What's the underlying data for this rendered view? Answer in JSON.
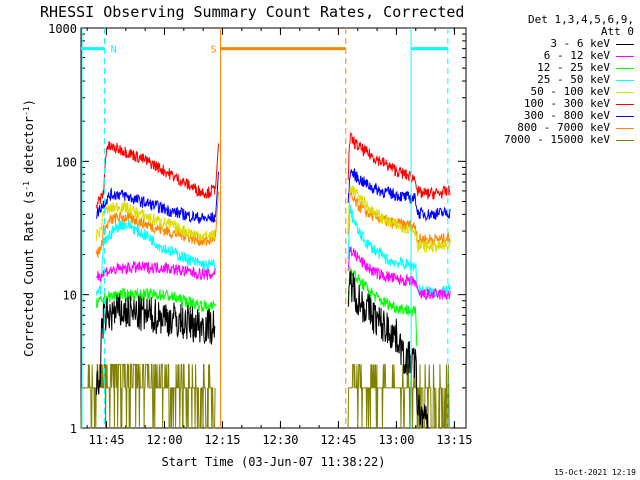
{
  "chart_data": {
    "type": "line",
    "title": "RHESSI Observing Summary Count Rates, Corrected",
    "xlabel": "Start Time (03-Jun-07 11:38:22)",
    "ylabel_prefix": "Corrected Count Rate (s",
    "ylabel_sup1": "-1",
    "ylabel_mid": " detector",
    "ylabel_sup2": "-1",
    "ylabel_suffix": ")",
    "y_scale": "log",
    "ylim": [
      1,
      1000
    ],
    "xlim_min": [
      698.4,
      798.0
    ],
    "x_ticks": [
      {
        "min": 705,
        "label": "11:45"
      },
      {
        "min": 720,
        "label": "12:00"
      },
      {
        "min": 735,
        "label": "12:15"
      },
      {
        "min": 750,
        "label": "12:30"
      },
      {
        "min": 765,
        "label": "12:45"
      },
      {
        "min": 780,
        "label": "13:00"
      },
      {
        "min": 795,
        "label": "13:15"
      }
    ],
    "y_ticks": [
      {
        "value": 1,
        "label": "1"
      },
      {
        "value": 10,
        "label": "10"
      },
      {
        "value": 100,
        "label": "100"
      },
      {
        "value": 1000,
        "label": "1000"
      }
    ],
    "legend_header": [
      "Det 1,3,4,5,6,9,",
      "Att 0"
    ],
    "series": [
      {
        "name": "3 - 6 keV",
        "color": "#000000",
        "seg1": [
          [
            702.4,
            2
          ],
          [
            703.2,
            2
          ],
          [
            703.8,
            6
          ],
          [
            705,
            7
          ],
          [
            706,
            7
          ],
          [
            708,
            7.5
          ],
          [
            712,
            7.2
          ],
          [
            716,
            7
          ],
          [
            720,
            6.8
          ],
          [
            724,
            6.3
          ],
          [
            728,
            6
          ],
          [
            732,
            5.8
          ],
          [
            733.2,
            6
          ]
        ],
        "seg2": [
          [
            767.5,
            6
          ],
          [
            768,
            13
          ],
          [
            769,
            11
          ],
          [
            770,
            9.5
          ],
          [
            772,
            8
          ],
          [
            774,
            7
          ],
          [
            776,
            6
          ],
          [
            778,
            5.5
          ],
          [
            780,
            4.8
          ],
          [
            781,
            4.5
          ],
          [
            781.5,
            3.4
          ],
          [
            784,
            3.2
          ],
          [
            785,
            3
          ],
          [
            785.5,
            1.4
          ],
          [
            787,
            1.2
          ],
          [
            788.2,
            1
          ]
        ]
      },
      {
        "name": "6 - 12 keV",
        "color": "#ff00ff",
        "seg1": [
          [
            702.4,
            14
          ],
          [
            703.8,
            14
          ],
          [
            705,
            15
          ],
          [
            708,
            15.5
          ],
          [
            712,
            16
          ],
          [
            716,
            16
          ],
          [
            720,
            16
          ],
          [
            724,
            15.2
          ],
          [
            728,
            14.5
          ],
          [
            732,
            14
          ],
          [
            733.2,
            15
          ]
        ],
        "seg2": [
          [
            767.5,
            16
          ],
          [
            768,
            22
          ],
          [
            770,
            19
          ],
          [
            772,
            16.5
          ],
          [
            774,
            15
          ],
          [
            776,
            14
          ],
          [
            778,
            13.6
          ],
          [
            780,
            13
          ],
          [
            782,
            12.8
          ],
          [
            784,
            12.5
          ],
          [
            785,
            12.5
          ],
          [
            785.5,
            10
          ],
          [
            788,
            10
          ],
          [
            792,
            10
          ],
          [
            794,
            10
          ]
        ]
      },
      {
        "name": "12 - 25 keV",
        "color": "#00ff00",
        "seg1": [
          [
            702.4,
            8.5
          ],
          [
            703.8,
            9
          ],
          [
            705,
            9.5
          ],
          [
            708,
            10
          ],
          [
            712,
            10
          ],
          [
            716,
            10
          ],
          [
            720,
            10
          ],
          [
            724,
            9.2
          ],
          [
            728,
            8.5
          ],
          [
            732,
            8
          ],
          [
            733.2,
            8.5
          ]
        ],
        "seg2": [
          [
            767.5,
            9
          ],
          [
            768,
            16
          ],
          [
            770,
            13
          ],
          [
            772,
            11.5
          ],
          [
            774,
            10
          ],
          [
            776,
            9
          ],
          [
            778,
            8.5
          ],
          [
            780,
            8
          ],
          [
            782,
            7.8
          ],
          [
            784,
            7.5
          ],
          [
            785,
            7.3
          ],
          [
            785.3,
            4
          ]
        ]
      },
      {
        "name": "25 - 50 keV",
        "color": "#00ffff",
        "seg1": [
          [
            702.4,
            10
          ],
          [
            703.5,
            10.5
          ],
          [
            704.2,
            24
          ],
          [
            705,
            26
          ],
          [
            707,
            31
          ],
          [
            709,
            34
          ],
          [
            711,
            33
          ],
          [
            713,
            30
          ],
          [
            716,
            27
          ],
          [
            719,
            23
          ],
          [
            722,
            21
          ],
          [
            725,
            19
          ],
          [
            728,
            17.5
          ],
          [
            731,
            16.5
          ],
          [
            733.2,
            17
          ]
        ],
        "seg2": [
          [
            767.5,
            18
          ],
          [
            768,
            45
          ],
          [
            769,
            36
          ],
          [
            770,
            30
          ],
          [
            772,
            25
          ],
          [
            774,
            22
          ],
          [
            776,
            20
          ],
          [
            778,
            18
          ],
          [
            780,
            17.5
          ],
          [
            782,
            17
          ],
          [
            784,
            16.5
          ],
          [
            785,
            16.5
          ],
          [
            785.5,
            11
          ],
          [
            788,
            10.5
          ],
          [
            792,
            10.5
          ],
          [
            794,
            11
          ]
        ]
      },
      {
        "name": "50 - 100 keV",
        "color": "#dddd00",
        "seg1": [
          [
            702.4,
            28
          ],
          [
            703.5,
            30
          ],
          [
            704.2,
            42
          ],
          [
            706,
            44
          ],
          [
            708,
            46
          ],
          [
            710,
            45
          ],
          [
            712,
            42
          ],
          [
            715,
            39
          ],
          [
            718,
            36
          ],
          [
            721,
            34
          ],
          [
            724,
            31
          ],
          [
            727,
            29
          ],
          [
            730,
            27.5
          ],
          [
            733.2,
            28
          ]
        ],
        "seg2": [
          [
            767.5,
            30
          ],
          [
            768,
            65
          ],
          [
            770,
            55
          ],
          [
            772,
            48
          ],
          [
            774,
            42
          ],
          [
            776,
            38
          ],
          [
            778,
            35
          ],
          [
            780,
            33
          ],
          [
            782,
            32
          ],
          [
            784,
            31
          ],
          [
            785,
            30
          ],
          [
            785.5,
            23
          ],
          [
            788,
            23
          ],
          [
            792,
            23
          ],
          [
            794,
            23
          ]
        ]
      },
      {
        "name": "100 - 300 keV",
        "color": "#ff0000",
        "seg1": [
          [
            702.4,
            48
          ],
          [
            703.5,
            52
          ],
          [
            704.2,
            58
          ],
          [
            705,
            130
          ],
          [
            707,
            125
          ],
          [
            709,
            122
          ],
          [
            711,
            115
          ],
          [
            714,
            105
          ],
          [
            717,
            95
          ],
          [
            720,
            85
          ],
          [
            723,
            75
          ],
          [
            726,
            67
          ],
          [
            729,
            60
          ],
          [
            731,
            58
          ],
          [
            733.2,
            62
          ]
        ],
        "seg2": [
          [
            767.5,
            78
          ],
          [
            768,
            150
          ],
          [
            770,
            130
          ],
          [
            772,
            118
          ],
          [
            774,
            108
          ],
          [
            776,
            100
          ],
          [
            778,
            92
          ],
          [
            780,
            85
          ],
          [
            782,
            80
          ],
          [
            784,
            76
          ],
          [
            785,
            74
          ],
          [
            785.5,
            58
          ],
          [
            788,
            57
          ],
          [
            792,
            58
          ],
          [
            794,
            60
          ]
        ]
      },
      {
        "name": "300 - 800 keV",
        "color": "#0000ff",
        "seg1": [
          [
            702.4,
            40
          ],
          [
            703.5,
            45
          ],
          [
            704.2,
            48
          ],
          [
            706,
            56
          ],
          [
            708,
            57
          ],
          [
            710,
            55
          ],
          [
            713,
            51
          ],
          [
            716,
            48
          ],
          [
            719,
            45
          ],
          [
            722,
            42
          ],
          [
            725,
            40
          ],
          [
            728,
            38
          ],
          [
            731,
            37
          ],
          [
            733.2,
            38
          ]
        ],
        "seg2": [
          [
            767.5,
            45
          ],
          [
            768,
            85
          ],
          [
            770,
            75
          ],
          [
            772,
            68
          ],
          [
            774,
            63
          ],
          [
            776,
            60
          ],
          [
            778,
            58
          ],
          [
            780,
            56
          ],
          [
            782,
            54
          ],
          [
            784,
            53
          ],
          [
            785,
            52
          ],
          [
            785.5,
            41
          ],
          [
            788,
            40
          ],
          [
            792,
            41
          ],
          [
            794,
            41
          ]
        ]
      },
      {
        "name": "800 - 7000 keV",
        "color": "#ff8800",
        "seg1": [
          [
            702.4,
            20
          ],
          [
            703.5,
            22
          ],
          [
            704.2,
            30
          ],
          [
            706,
            36
          ],
          [
            708,
            38
          ],
          [
            710,
            38
          ],
          [
            713,
            36
          ],
          [
            716,
            33
          ],
          [
            719,
            31
          ],
          [
            722,
            29
          ],
          [
            725,
            28
          ],
          [
            728,
            26
          ],
          [
            731,
            25
          ],
          [
            733.2,
            27
          ]
        ],
        "seg2": [
          [
            767.5,
            30
          ],
          [
            768,
            55
          ],
          [
            770,
            47
          ],
          [
            772,
            42
          ],
          [
            774,
            39
          ],
          [
            776,
            37
          ],
          [
            778,
            35
          ],
          [
            780,
            34
          ],
          [
            782,
            33.5
          ],
          [
            784,
            33
          ],
          [
            785,
            32.5
          ],
          [
            785.5,
            26
          ],
          [
            788,
            26
          ],
          [
            792,
            26
          ],
          [
            794,
            27
          ]
        ]
      },
      {
        "name": "7000 - 15000 keV",
        "color": "#808000",
        "seg1": [
          [
            698.4,
            1.6
          ],
          [
            700,
            1.8
          ],
          [
            702.4,
            1.9
          ],
          [
            704,
            2.2
          ],
          [
            706,
            2.4
          ],
          [
            710,
            2.3
          ],
          [
            714,
            2.4
          ],
          [
            718,
            2.2
          ],
          [
            722,
            2.1
          ],
          [
            726,
            2
          ],
          [
            730,
            1.8
          ],
          [
            733.2,
            1.7
          ]
        ],
        "seg2": [
          [
            767.5,
            1.6
          ],
          [
            768,
            2
          ],
          [
            772,
            2.1
          ],
          [
            776,
            2.1
          ],
          [
            780,
            1.9
          ],
          [
            784,
            1.9
          ],
          [
            786,
            1.6
          ],
          [
            790,
            1.4
          ],
          [
            794,
            1.3
          ]
        ]
      }
    ],
    "markers": [
      {
        "type": "band",
        "label": "",
        "color": "#00ffff",
        "x1": 698.4,
        "x2": 698.4,
        "y": 700
      },
      {
        "type": "band",
        "label": "N",
        "color": "#00ffff",
        "x1": 698.4,
        "x2": 704.5,
        "y": 700,
        "dash_at": 704.5
      },
      {
        "type": "band",
        "label": "S",
        "color": "#ff8800",
        "x1": 734.5,
        "x2": 766.9,
        "y": 700,
        "solid_at": 734.5,
        "dash_at": 766.9
      },
      {
        "type": "band",
        "label": "",
        "color": "#00ffff",
        "x1": 783.8,
        "x2": 793.3,
        "y": 700,
        "solid_at": 783.8,
        "dash_at": 793.3
      }
    ]
  },
  "footer": {
    "timestamp": "15-Oct-2021 12:19"
  }
}
